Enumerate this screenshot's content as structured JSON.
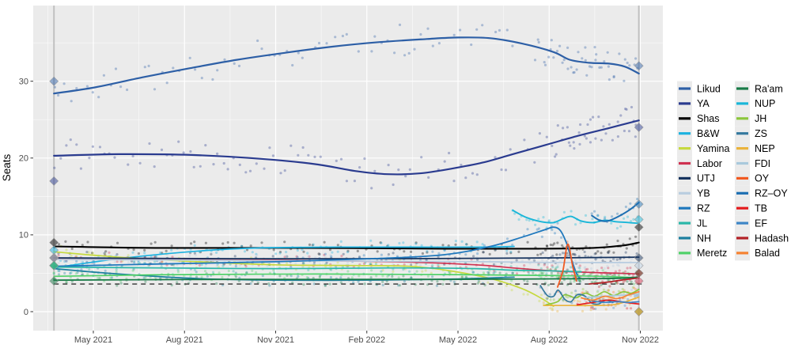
{
  "chart_data": {
    "type": "line",
    "title": "",
    "xlabel": "",
    "ylabel": "Seats",
    "ylim": [
      -2.5,
      39.9
    ],
    "xlim": [
      2021.16,
      2022.89
    ],
    "grid": "on",
    "legend_position": "right",
    "background": "#ebebeb",
    "x_ticks": [
      {
        "label": "May 2021",
        "value": 2021.33
      },
      {
        "label": "Aug 2021",
        "value": 2021.58
      },
      {
        "label": "Nov 2021",
        "value": 2021.83
      },
      {
        "label": "Feb 2022",
        "value": 2022.08
      },
      {
        "label": "May 2022",
        "value": 2022.33
      },
      {
        "label": "Aug 2022",
        "value": 2022.58
      },
      {
        "label": "Nov 2022",
        "value": 2022.83
      }
    ],
    "y_ticks": [
      {
        "label": "0",
        "value": 0
      },
      {
        "label": "10",
        "value": 10
      },
      {
        "label": "20",
        "value": 20
      },
      {
        "label": "30",
        "value": 30
      }
    ],
    "election_dates": [
      2021.222,
      2022.826
    ],
    "threshold_line": {
      "value": 3.6,
      "style": "dashed",
      "color": "#333333"
    },
    "legend_columns": [
      [
        "Likud",
        "YA",
        "Shas",
        "B&W",
        "Yamina",
        "Labor",
        "UTJ",
        "YB",
        "RZ",
        "JL",
        "NH",
        "Meretz"
      ],
      [
        "Ra'am",
        "NUP",
        "JH",
        "ZS",
        "NEP",
        "FDI",
        "OY",
        "RZ–OY",
        "TB",
        "EF",
        "Hadash",
        "Balad"
      ]
    ],
    "series": [
      {
        "name": "Likud",
        "color": "#2d5fa6",
        "width": 2.2,
        "result_2021": 30,
        "result_2022": 32,
        "points": [
          [
            2021.222,
            28.4
          ],
          [
            2021.334,
            29.2
          ],
          [
            2021.464,
            30.5
          ],
          [
            2021.595,
            31.7
          ],
          [
            2021.725,
            32.8
          ],
          [
            2021.855,
            33.7
          ],
          [
            2021.985,
            34.5
          ],
          [
            2022.115,
            35.1
          ],
          [
            2022.245,
            35.5
          ],
          [
            2022.332,
            35.7
          ],
          [
            2022.419,
            35.6
          ],
          [
            2022.506,
            34.9
          ],
          [
            2022.592,
            33.8
          ],
          [
            2022.636,
            32.8
          ],
          [
            2022.69,
            32.4
          ],
          [
            2022.744,
            32.3
          ],
          [
            2022.788,
            31.9
          ],
          [
            2022.826,
            31.0
          ]
        ]
      },
      {
        "name": "YA",
        "color": "#2a3b8f",
        "width": 2.2,
        "result_2021": 17,
        "result_2022": 24,
        "points": [
          [
            2021.222,
            20.3
          ],
          [
            2021.4,
            20.5
          ],
          [
            2021.6,
            20.4
          ],
          [
            2021.79,
            19.9
          ],
          [
            2021.94,
            19.2
          ],
          [
            2022.05,
            18.3
          ],
          [
            2022.137,
            17.9
          ],
          [
            2022.224,
            18.0
          ],
          [
            2022.31,
            18.6
          ],
          [
            2022.397,
            19.4
          ],
          [
            2022.48,
            20.5
          ],
          [
            2022.57,
            21.7
          ],
          [
            2022.66,
            22.9
          ],
          [
            2022.744,
            23.9
          ],
          [
            2022.826,
            24.9
          ]
        ]
      },
      {
        "name": "Shas",
        "color": "#000000",
        "width": 2.1,
        "result_2021": 9,
        "result_2022": 11,
        "points": [
          [
            2021.222,
            8.5
          ],
          [
            2021.5,
            8.3
          ],
          [
            2021.9,
            8.3
          ],
          [
            2022.3,
            8.2
          ],
          [
            2022.55,
            8.2
          ],
          [
            2022.7,
            8.3
          ],
          [
            2022.78,
            8.6
          ],
          [
            2022.826,
            9.0
          ]
        ]
      },
      {
        "name": "B&W",
        "color": "#1cb2e0",
        "width": 1.7,
        "result_2021": 8,
        "result_2022": null,
        "points": [
          [
            2021.222,
            5.7
          ],
          [
            2021.4,
            6.9
          ],
          [
            2021.62,
            7.9
          ],
          [
            2021.79,
            8.3
          ],
          [
            2022.0,
            8.4
          ],
          [
            2022.2,
            8.4
          ],
          [
            2022.4,
            8.4
          ],
          [
            2022.484,
            8.5
          ]
        ]
      },
      {
        "name": "Yamina",
        "color": "#c6d93f",
        "width": 1.7,
        "result_2021": 7,
        "result_2022": null,
        "points": [
          [
            2021.222,
            7.8
          ],
          [
            2021.4,
            7.1
          ],
          [
            2021.62,
            6.5
          ],
          [
            2021.83,
            6.1
          ],
          [
            2022.05,
            6.0
          ],
          [
            2022.2,
            5.9
          ],
          [
            2022.31,
            5.3
          ],
          [
            2022.42,
            4.3
          ],
          [
            2022.506,
            3.0
          ],
          [
            2022.56,
            1.7
          ],
          [
            2022.592,
            0.7
          ]
        ]
      },
      {
        "name": "Labor",
        "color": "#cf3150",
        "width": 1.7,
        "result_2021": 7,
        "result_2022": 4,
        "points": [
          [
            2021.222,
            6.9
          ],
          [
            2021.5,
            6.8
          ],
          [
            2021.83,
            6.7
          ],
          [
            2022.16,
            6.5
          ],
          [
            2022.38,
            6.1
          ],
          [
            2022.48,
            5.7
          ],
          [
            2022.592,
            5.3
          ],
          [
            2022.7,
            5.1
          ],
          [
            2022.77,
            5.0
          ],
          [
            2022.826,
            4.9
          ]
        ]
      },
      {
        "name": "UTJ",
        "color": "#16335e",
        "width": 1.8,
        "result_2021": 7,
        "result_2022": 7,
        "points": [
          [
            2021.222,
            7.0
          ],
          [
            2021.7,
            6.9
          ],
          [
            2022.2,
            6.9
          ],
          [
            2022.6,
            7.0
          ],
          [
            2022.826,
            7.1
          ]
        ]
      },
      {
        "name": "YB",
        "color": "#b9cde0",
        "width": 1.8,
        "result_2021": 7,
        "result_2022": 6,
        "points": [
          [
            2021.222,
            6.8
          ],
          [
            2021.6,
            6.7
          ],
          [
            2022.0,
            6.6
          ],
          [
            2022.4,
            6.5
          ],
          [
            2022.6,
            6.4
          ],
          [
            2022.826,
            6.4
          ]
        ]
      },
      {
        "name": "RZ",
        "color": "#1f78bd",
        "width": 1.8,
        "result_2021": 6,
        "result_2022": null,
        "points": [
          [
            2021.222,
            5.9
          ],
          [
            2021.5,
            6.2
          ],
          [
            2021.83,
            6.5
          ],
          [
            2022.1,
            6.9
          ],
          [
            2022.29,
            7.4
          ],
          [
            2022.419,
            8.5
          ],
          [
            2022.506,
            9.7
          ],
          [
            2022.57,
            10.7
          ],
          [
            2022.592,
            11.0
          ],
          [
            2022.61,
            10.6
          ],
          [
            2022.627,
            9.0
          ],
          [
            2022.64,
            7.0
          ],
          [
            2022.653,
            5.2
          ],
          [
            2022.664,
            4.3
          ]
        ]
      },
      {
        "name": "JL",
        "color": "#2ab7a9",
        "width": 1.7,
        "result_2021": 6,
        "result_2022": null,
        "points": [
          [
            2021.222,
            5.8
          ],
          [
            2021.5,
            5.7
          ],
          [
            2021.83,
            5.6
          ],
          [
            2022.16,
            5.7
          ],
          [
            2022.38,
            5.6
          ],
          [
            2022.48,
            5.4
          ],
          [
            2022.592,
            5.3
          ],
          [
            2022.668,
            5.2
          ]
        ]
      },
      {
        "name": "NH",
        "color": "#1c7f9f",
        "width": 1.7,
        "result_2021": 6,
        "result_2022": null,
        "points": [
          [
            2021.222,
            5.6
          ],
          [
            2021.4,
            4.9
          ],
          [
            2021.62,
            4.3
          ],
          [
            2021.83,
            4.1
          ],
          [
            2022.05,
            4.1
          ],
          [
            2022.27,
            4.2
          ],
          [
            2022.419,
            4.4
          ],
          [
            2022.484,
            4.5
          ]
        ]
      },
      {
        "name": "Meretz",
        "color": "#4fd168",
        "width": 1.7,
        "result_2021": 6,
        "result_2022": 0,
        "points": [
          [
            2021.222,
            4.6
          ],
          [
            2021.5,
            4.8
          ],
          [
            2021.94,
            4.9
          ],
          [
            2022.38,
            4.8
          ],
          [
            2022.592,
            4.7
          ],
          [
            2022.72,
            4.6
          ],
          [
            2022.826,
            4.4
          ]
        ]
      },
      {
        "name": "Ra'am",
        "color": "#187a47",
        "width": 1.8,
        "result_2021": 4,
        "result_2022": 5,
        "points": [
          [
            2021.222,
            4.1
          ],
          [
            2021.7,
            4.2
          ],
          [
            2022.3,
            4.2
          ],
          [
            2022.72,
            4.3
          ],
          [
            2022.826,
            4.5
          ]
        ]
      },
      {
        "name": "NUP",
        "color": "#19b6d8",
        "width": 1.9,
        "result_2021": null,
        "result_2022": 12,
        "points": [
          [
            2022.48,
            13.2
          ],
          [
            2022.516,
            12.3
          ],
          [
            2022.56,
            11.7
          ],
          [
            2022.592,
            11.6
          ],
          [
            2022.618,
            12.1
          ],
          [
            2022.64,
            12.4
          ],
          [
            2022.668,
            11.8
          ],
          [
            2022.701,
            11.6
          ],
          [
            2022.733,
            11.9
          ],
          [
            2022.766,
            11.7
          ],
          [
            2022.799,
            11.6
          ],
          [
            2022.826,
            11.5
          ]
        ]
      },
      {
        "name": "JH",
        "color": "#8cc63c",
        "width": 1.7,
        "result_2021": null,
        "result_2022": 0,
        "points": [
          [
            2022.571,
            0.9
          ],
          [
            2022.603,
            1.3
          ],
          [
            2022.623,
            2.2
          ],
          [
            2022.653,
            1.8
          ],
          [
            2022.679,
            2.4
          ],
          [
            2022.705,
            2.0
          ],
          [
            2022.731,
            2.6
          ],
          [
            2022.757,
            2.1
          ],
          [
            2022.783,
            2.6
          ],
          [
            2022.805,
            2.4
          ],
          [
            2022.826,
            2.9
          ]
        ]
      },
      {
        "name": "ZS",
        "color": "#35799e",
        "width": 1.7,
        "result_2021": null,
        "result_2022": null,
        "points": [
          [
            2022.556,
            3.4
          ],
          [
            2022.575,
            2.1
          ],
          [
            2022.592,
            2.0
          ],
          [
            2022.605,
            2.8
          ],
          [
            2022.623,
            1.6
          ],
          [
            2022.64,
            1.3
          ],
          [
            2022.657,
            2.2
          ],
          [
            2022.679,
            2.0
          ],
          [
            2022.697,
            1.1
          ],
          [
            2022.716,
            1.0
          ],
          [
            2022.735,
            1.5
          ],
          [
            2022.755,
            1.2
          ]
        ]
      },
      {
        "name": "NEP",
        "color": "#eab33c",
        "width": 1.7,
        "result_2021": null,
        "result_2022": null,
        "points": [
          [
            2022.565,
            0.8
          ],
          [
            2022.64,
            0.8
          ],
          [
            2022.7,
            0.8
          ],
          [
            2022.755,
            0.9
          ],
          [
            2022.79,
            1.3
          ],
          [
            2022.826,
            1.9
          ]
        ]
      },
      {
        "name": "FDI",
        "color": "#a9c9dc",
        "width": 1.7,
        "result_2021": null,
        "result_2022": null,
        "points": [
          [
            2022.679,
            1.8
          ],
          [
            2022.722,
            2.0
          ],
          [
            2022.766,
            2.1
          ],
          [
            2022.826,
            2.3
          ]
        ]
      },
      {
        "name": "OY",
        "color": "#f15a22",
        "width": 1.8,
        "result_2021": null,
        "result_2022": null,
        "points": [
          [
            2022.603,
            3.2
          ],
          [
            2022.618,
            5.4
          ],
          [
            2022.631,
            8.8
          ],
          [
            2022.645,
            5.8
          ],
          [
            2022.655,
            4.0
          ]
        ]
      },
      {
        "name": "RZ–OY",
        "color": "#1d6fb2",
        "width": 2.0,
        "result_2021": null,
        "result_2022": 14,
        "points": [
          [
            2022.697,
            12.5
          ],
          [
            2022.718,
            11.9
          ],
          [
            2022.74,
            11.8
          ],
          [
            2022.766,
            12.3
          ],
          [
            2022.799,
            13.2
          ],
          [
            2022.826,
            14.2
          ]
        ]
      },
      {
        "name": "TB",
        "color": "#e31a1c",
        "width": 1.7,
        "result_2021": null,
        "result_2022": null,
        "points": [
          [
            2022.657,
            0.9
          ],
          [
            2022.701,
            1.2
          ],
          [
            2022.744,
            1.5
          ],
          [
            2022.788,
            1.2
          ],
          [
            2022.826,
            1.0
          ]
        ]
      },
      {
        "name": "EF",
        "color": "#3d85c6",
        "width": 1.7,
        "result_2021": null,
        "result_2022": null,
        "points": [
          [
            2022.697,
            1.4
          ],
          [
            2022.733,
            1.2
          ],
          [
            2022.766,
            1.3
          ],
          [
            2022.799,
            1.2
          ],
          [
            2022.826,
            1.3
          ]
        ]
      },
      {
        "name": "Hadash",
        "color": "#b22025",
        "width": 1.8,
        "result_2021": null,
        "result_2022": 5,
        "points": [
          [
            2022.69,
            3.6
          ],
          [
            2022.733,
            3.8
          ],
          [
            2022.777,
            4.1
          ],
          [
            2022.826,
            4.4
          ]
        ]
      },
      {
        "name": "Balad",
        "color": "#f58231",
        "width": 1.7,
        "result_2021": null,
        "result_2022": 0,
        "points": [
          [
            2022.668,
            1.8
          ],
          [
            2022.701,
            1.5
          ],
          [
            2022.733,
            2.0
          ],
          [
            2022.766,
            1.7
          ],
          [
            2022.799,
            2.2
          ],
          [
            2022.826,
            2.6
          ]
        ]
      }
    ]
  }
}
